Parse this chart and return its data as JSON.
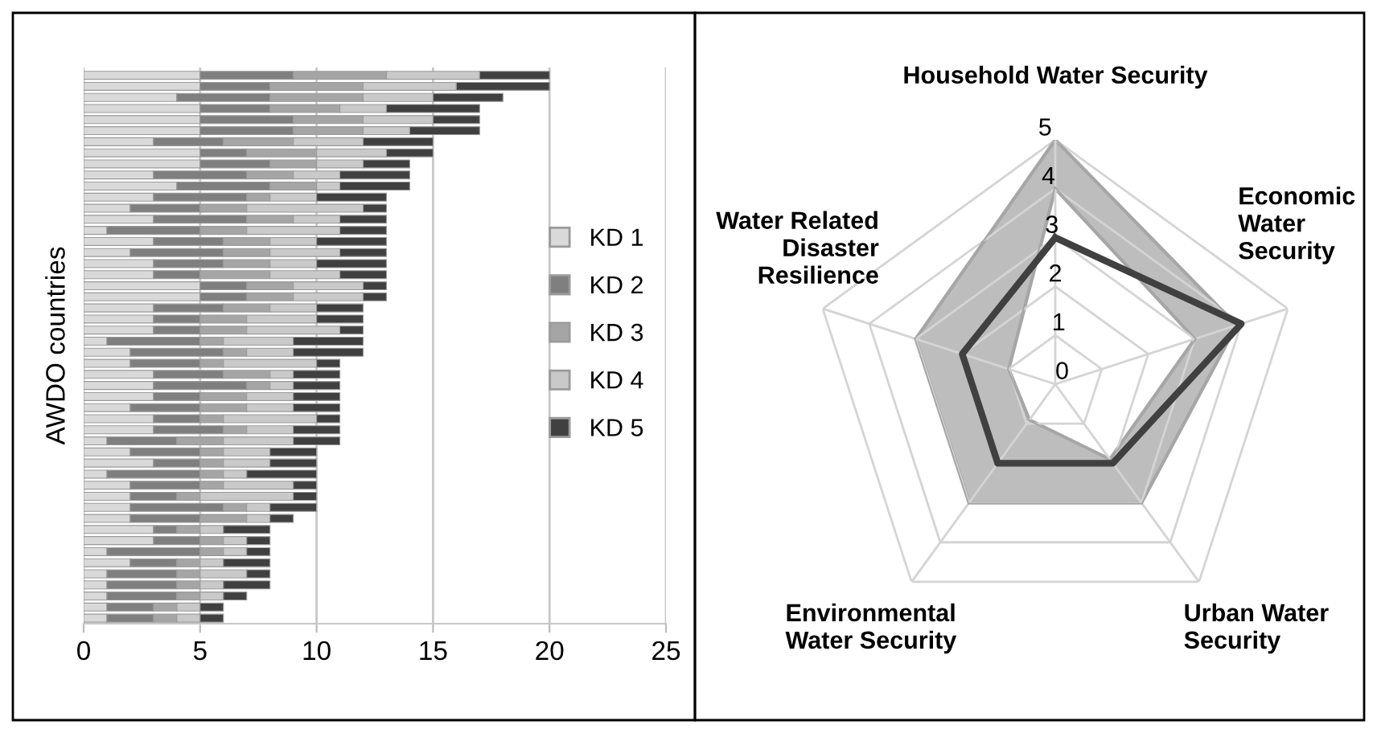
{
  "chart_data": [
    {
      "type": "bar",
      "orientation": "horizontal",
      "stacked": true,
      "ylabel": "AWDO countries",
      "categories": [
        null,
        null,
        null,
        null,
        null,
        null,
        null,
        null,
        null,
        null,
        null,
        null,
        null,
        null,
        null,
        null,
        null,
        null,
        null,
        null,
        null,
        null,
        null,
        null,
        null,
        null,
        null,
        null,
        null,
        null,
        null,
        null,
        null,
        null,
        null,
        null,
        null,
        null,
        null,
        null,
        null,
        null,
        null,
        null,
        null,
        null,
        null,
        null,
        null,
        null
      ],
      "series": [
        {
          "name": "KD 1",
          "color": "#d9d9d9",
          "values": [
            5,
            5,
            4,
            5,
            5,
            5,
            3,
            5,
            5,
            3,
            4,
            3,
            2,
            3,
            1,
            3,
            2,
            3,
            3,
            5,
            5,
            3,
            3,
            3,
            1,
            2,
            2,
            3,
            3,
            3,
            2,
            3,
            3,
            1,
            2,
            3,
            1,
            2,
            2,
            2,
            2,
            3,
            3,
            1,
            2,
            1,
            1,
            1,
            1,
            1
          ]
        },
        {
          "name": "KD 2",
          "color": "#7f7f7f",
          "values": [
            4,
            3,
            4,
            3,
            4,
            4,
            3,
            2,
            3,
            4,
            4,
            4,
            3,
            4,
            4,
            3,
            4,
            3,
            2,
            2,
            2,
            3,
            2,
            2,
            4,
            4,
            3,
            3,
            4,
            2,
            3,
            2,
            3,
            3,
            3,
            2,
            4,
            3,
            2,
            4,
            3,
            1,
            2,
            4,
            2,
            3,
            3,
            3,
            2,
            2
          ]
        },
        {
          "name": "KD 3",
          "color": "#a5a5a5",
          "values": [
            4,
            4,
            4,
            3,
            3,
            3,
            3,
            3,
            2,
            2,
            2,
            1,
            2,
            2,
            2,
            2,
            2,
            2,
            3,
            2,
            2,
            2,
            2,
            2,
            1,
            1,
            1,
            2,
            1,
            2,
            2,
            1,
            1,
            2,
            1,
            1,
            1,
            1,
            1,
            1,
            2,
            1,
            1,
            1,
            1,
            1,
            1,
            1,
            1,
            1
          ]
        },
        {
          "name": "KD 4",
          "color": "#c9c9c9",
          "values": [
            4,
            4,
            3,
            2,
            3,
            2,
            3,
            3,
            2,
            2,
            1,
            2,
            5,
            2,
            4,
            2,
            3,
            2,
            3,
            3,
            3,
            2,
            3,
            4,
            3,
            2,
            4,
            1,
            1,
            2,
            2,
            4,
            2,
            3,
            2,
            2,
            1,
            3,
            4,
            1,
            1,
            1,
            1,
            1,
            1,
            2,
            1,
            1,
            1,
            1
          ]
        },
        {
          "name": "KD 5",
          "color": "#404040",
          "values": [
            3,
            4,
            3,
            4,
            2,
            3,
            3,
            2,
            2,
            3,
            3,
            3,
            1,
            2,
            2,
            3,
            2,
            3,
            2,
            1,
            1,
            2,
            2,
            1,
            3,
            3,
            1,
            2,
            2,
            2,
            2,
            1,
            2,
            2,
            2,
            2,
            3,
            1,
            1,
            2,
            1,
            2,
            1,
            1,
            2,
            1,
            2,
            1,
            1,
            1
          ]
        }
      ],
      "xlim": [
        0,
        25
      ],
      "xticks": [
        0,
        5,
        10,
        15,
        20,
        25
      ],
      "grid": "x",
      "legend": "right",
      "tick_labels": "x"
    },
    {
      "type": "radar",
      "categories": [
        "Household Water Security",
        "Economic Water Security",
        "Urban Water Security",
        "Environmental Water Security",
        "Water Related Disaster Resilience"
      ],
      "series": [
        {
          "type": "area",
          "color": "#bdbdbd",
          "values": [
            5,
            3.9,
            3,
            3,
            3
          ]
        },
        {
          "type": "area",
          "color": "#ffffff",
          "values": [
            4,
            3,
            1.9,
            0.9,
            1
          ]
        },
        {
          "color": "#404040",
          "values": [
            3,
            4,
            2,
            2,
            2
          ]
        }
      ],
      "ylim": [
        0,
        5
      ],
      "yticks": [
        0,
        1,
        2,
        3,
        4,
        5
      ],
      "grid": true
    }
  ]
}
